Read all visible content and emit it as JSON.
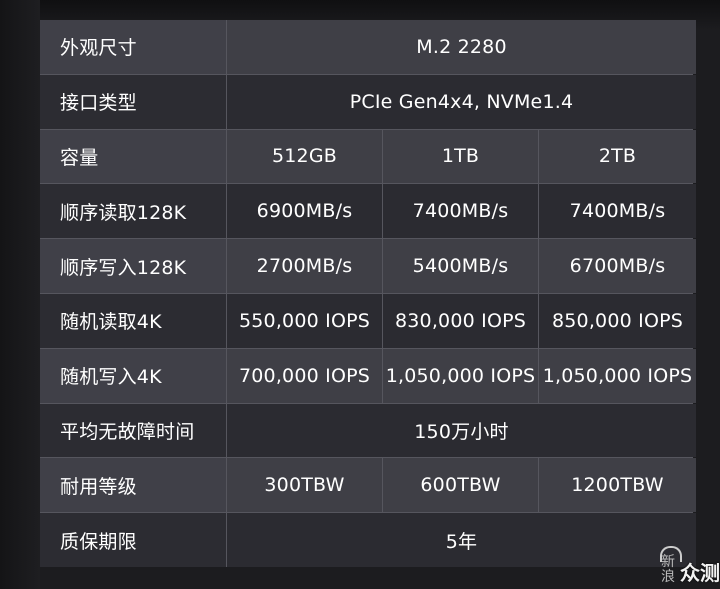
{
  "rows": [
    {
      "label": "外观尺寸",
      "values": [
        "M.2 2280"
      ]
    },
    {
      "label": "接口类型",
      "values": [
        "PCIe Gen4x4, NVMe1.4"
      ]
    },
    {
      "label": "容量",
      "values": [
        "512GB",
        "1TB",
        "2TB"
      ]
    },
    {
      "label": "顺序读取128K",
      "values": [
        "6900MB/s",
        "7400MB/s",
        "7400MB/s"
      ]
    },
    {
      "label": "顺序写入128K",
      "values": [
        "2700MB/s",
        "5400MB/s",
        "6700MB/s"
      ]
    },
    {
      "label": "随机读取4K",
      "values": [
        "550,000 IOPS",
        "830,000 IOPS",
        "850,000 IOPS"
      ]
    },
    {
      "label": "随机写入4K",
      "values": [
        "700,000 IOPS",
        "1,050,000 IOPS",
        "1,050,000 IOPS"
      ]
    },
    {
      "label": "平均无故障时间",
      "values": [
        "150万小时"
      ]
    },
    {
      "label": "耐用等级",
      "values": [
        "300TBW",
        "600TBW",
        "1200TBW"
      ]
    },
    {
      "label": "质保期限",
      "values": [
        "5年"
      ]
    }
  ],
  "watermark": {
    "brand": "新浪",
    "text": "众测",
    "icon": "wave-logo-icon"
  },
  "colors": {
    "row_odd": "#3f3f46",
    "row_even": "#2b2b31",
    "grid_line": "#56565e",
    "text": "#ffffff"
  }
}
